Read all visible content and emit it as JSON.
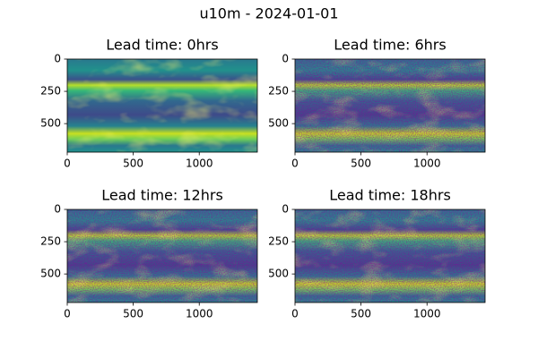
{
  "title": "u10m - 2024-01-01",
  "chart_data": [
    {
      "type": "image",
      "title": "Lead time: 0hrs",
      "xlim": [
        0,
        1440
      ],
      "ylim": [
        721,
        0
      ],
      "xticks": [
        0,
        500,
        1000
      ],
      "yticks": [
        0,
        250,
        500
      ]
    },
    {
      "type": "image",
      "title": "Lead time: 6hrs",
      "xlim": [
        0,
        1440
      ],
      "ylim": [
        721,
        0
      ],
      "xticks": [
        0,
        500,
        1000
      ],
      "yticks": [
        0,
        250,
        500
      ]
    },
    {
      "type": "image",
      "title": "Lead time: 12hrs",
      "xlim": [
        0,
        1440
      ],
      "ylim": [
        721,
        0
      ],
      "xticks": [
        0,
        500,
        1000
      ],
      "yticks": [
        0,
        250,
        500
      ]
    },
    {
      "type": "image",
      "title": "Lead time: 18hrs",
      "xlim": [
        0,
        1440
      ],
      "ylim": [
        721,
        0
      ],
      "xticks": [
        0,
        500,
        1000
      ],
      "yticks": [
        0,
        250,
        500
      ]
    }
  ]
}
